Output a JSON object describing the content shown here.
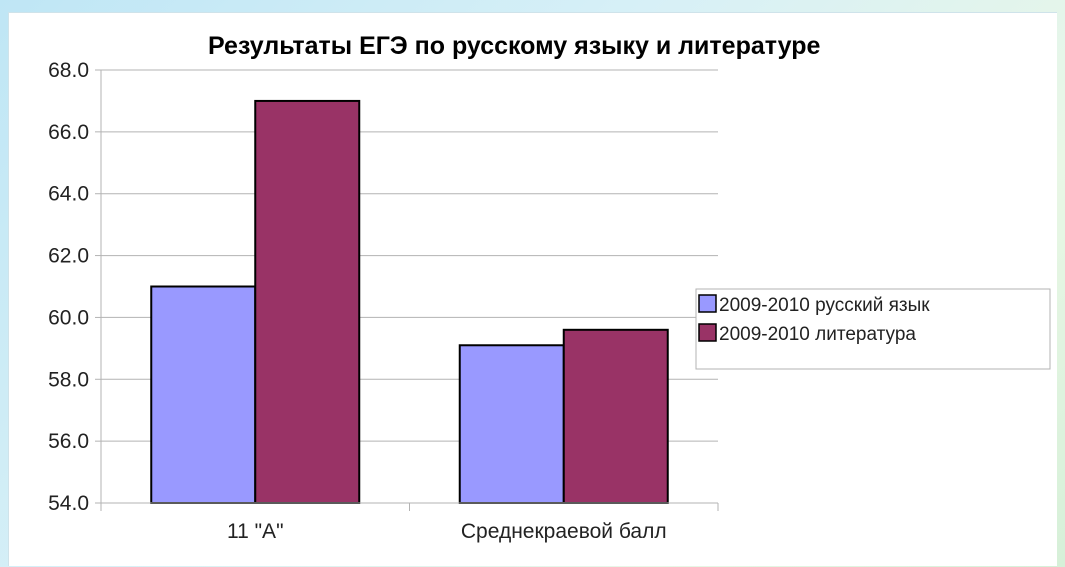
{
  "chart_data": {
    "type": "bar",
    "title": "Результаты ЕГЭ по русскому языку и литературе",
    "xlabel": "",
    "ylabel": "",
    "categories": [
      "11 \"А\"",
      "Среднекраевой балл"
    ],
    "series": [
      {
        "name": "2009-2010 русский язык",
        "values": [
          61.0,
          59.1
        ],
        "color": "#9999ff"
      },
      {
        "name": "2009-2010 литература",
        "values": [
          67.0,
          59.6
        ],
        "color": "#993366"
      }
    ],
    "ylim": [
      54.0,
      68.0
    ],
    "yticks": [
      "54.0",
      "56.0",
      "58.0",
      "60.0",
      "62.0",
      "64.0",
      "66.0",
      "68.0"
    ],
    "grid": true,
    "legend_position": "right"
  }
}
